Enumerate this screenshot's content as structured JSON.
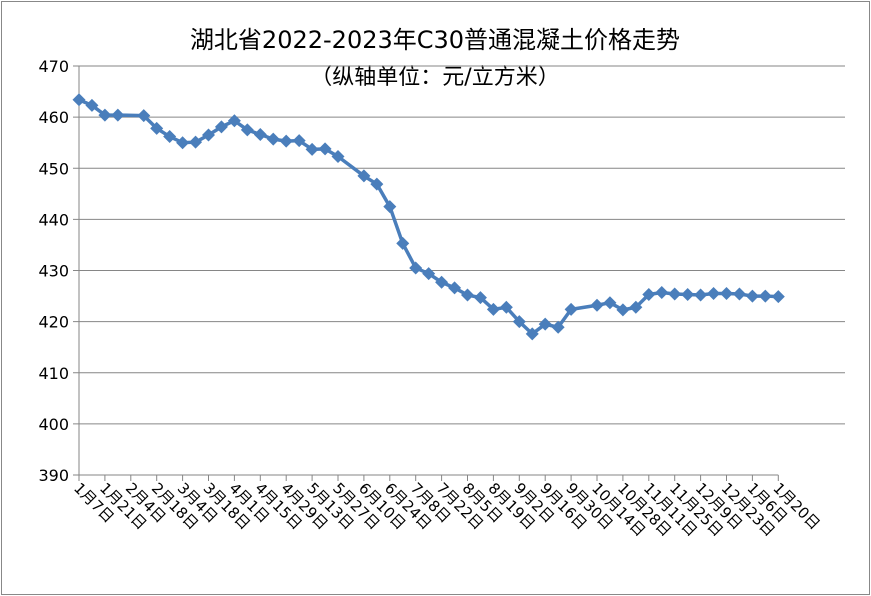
{
  "chart_data": {
    "type": "line",
    "title": "湖北省2022-2023年C30普通混凝土价格走势",
    "subtitle": "（纵轴单位：元/立方米）",
    "xlabel": "",
    "ylabel": "",
    "ylim": [
      390,
      470
    ],
    "yticks": [
      390,
      400,
      410,
      420,
      430,
      440,
      450,
      460,
      470
    ],
    "grid": true,
    "legend": "none",
    "series_color": "#4A7EBB",
    "tick_labels": [
      "1月7日",
      "1月21日",
      "2月4日",
      "2月18日",
      "3月4日",
      "3月18日",
      "4月1日",
      "4月15日",
      "4月29日",
      "5月13日",
      "5月27日",
      "6月10日",
      "6月24日",
      "7月8日",
      "7月22日",
      "8月5日",
      "8月19日",
      "9月2日",
      "9月16日",
      "9月30日",
      "10月14日",
      "10月28日",
      "11月11日",
      "11月25日",
      "12月9日",
      "12月23日",
      "1月6日",
      "1月20日"
    ],
    "values": [
      463.4,
      462.3,
      460.4,
      460.4,
      null,
      460.3,
      457.8,
      456.2,
      455.0,
      455.1,
      456.5,
      458.1,
      459.3,
      457.5,
      456.6,
      455.7,
      455.3,
      455.4,
      453.7,
      453.8,
      452.3,
      null,
      448.5,
      446.9,
      442.5,
      435.3,
      430.5,
      429.4,
      427.7,
      426.6,
      425.2,
      424.7,
      422.4,
      422.8,
      420.0,
      417.6,
      419.5,
      418.9,
      422.4,
      null,
      423.2,
      423.7,
      422.3,
      422.8,
      425.3,
      425.7,
      425.4,
      425.3,
      425.2,
      425.5,
      425.5,
      425.4,
      425.0,
      425.0,
      424.9
    ]
  }
}
